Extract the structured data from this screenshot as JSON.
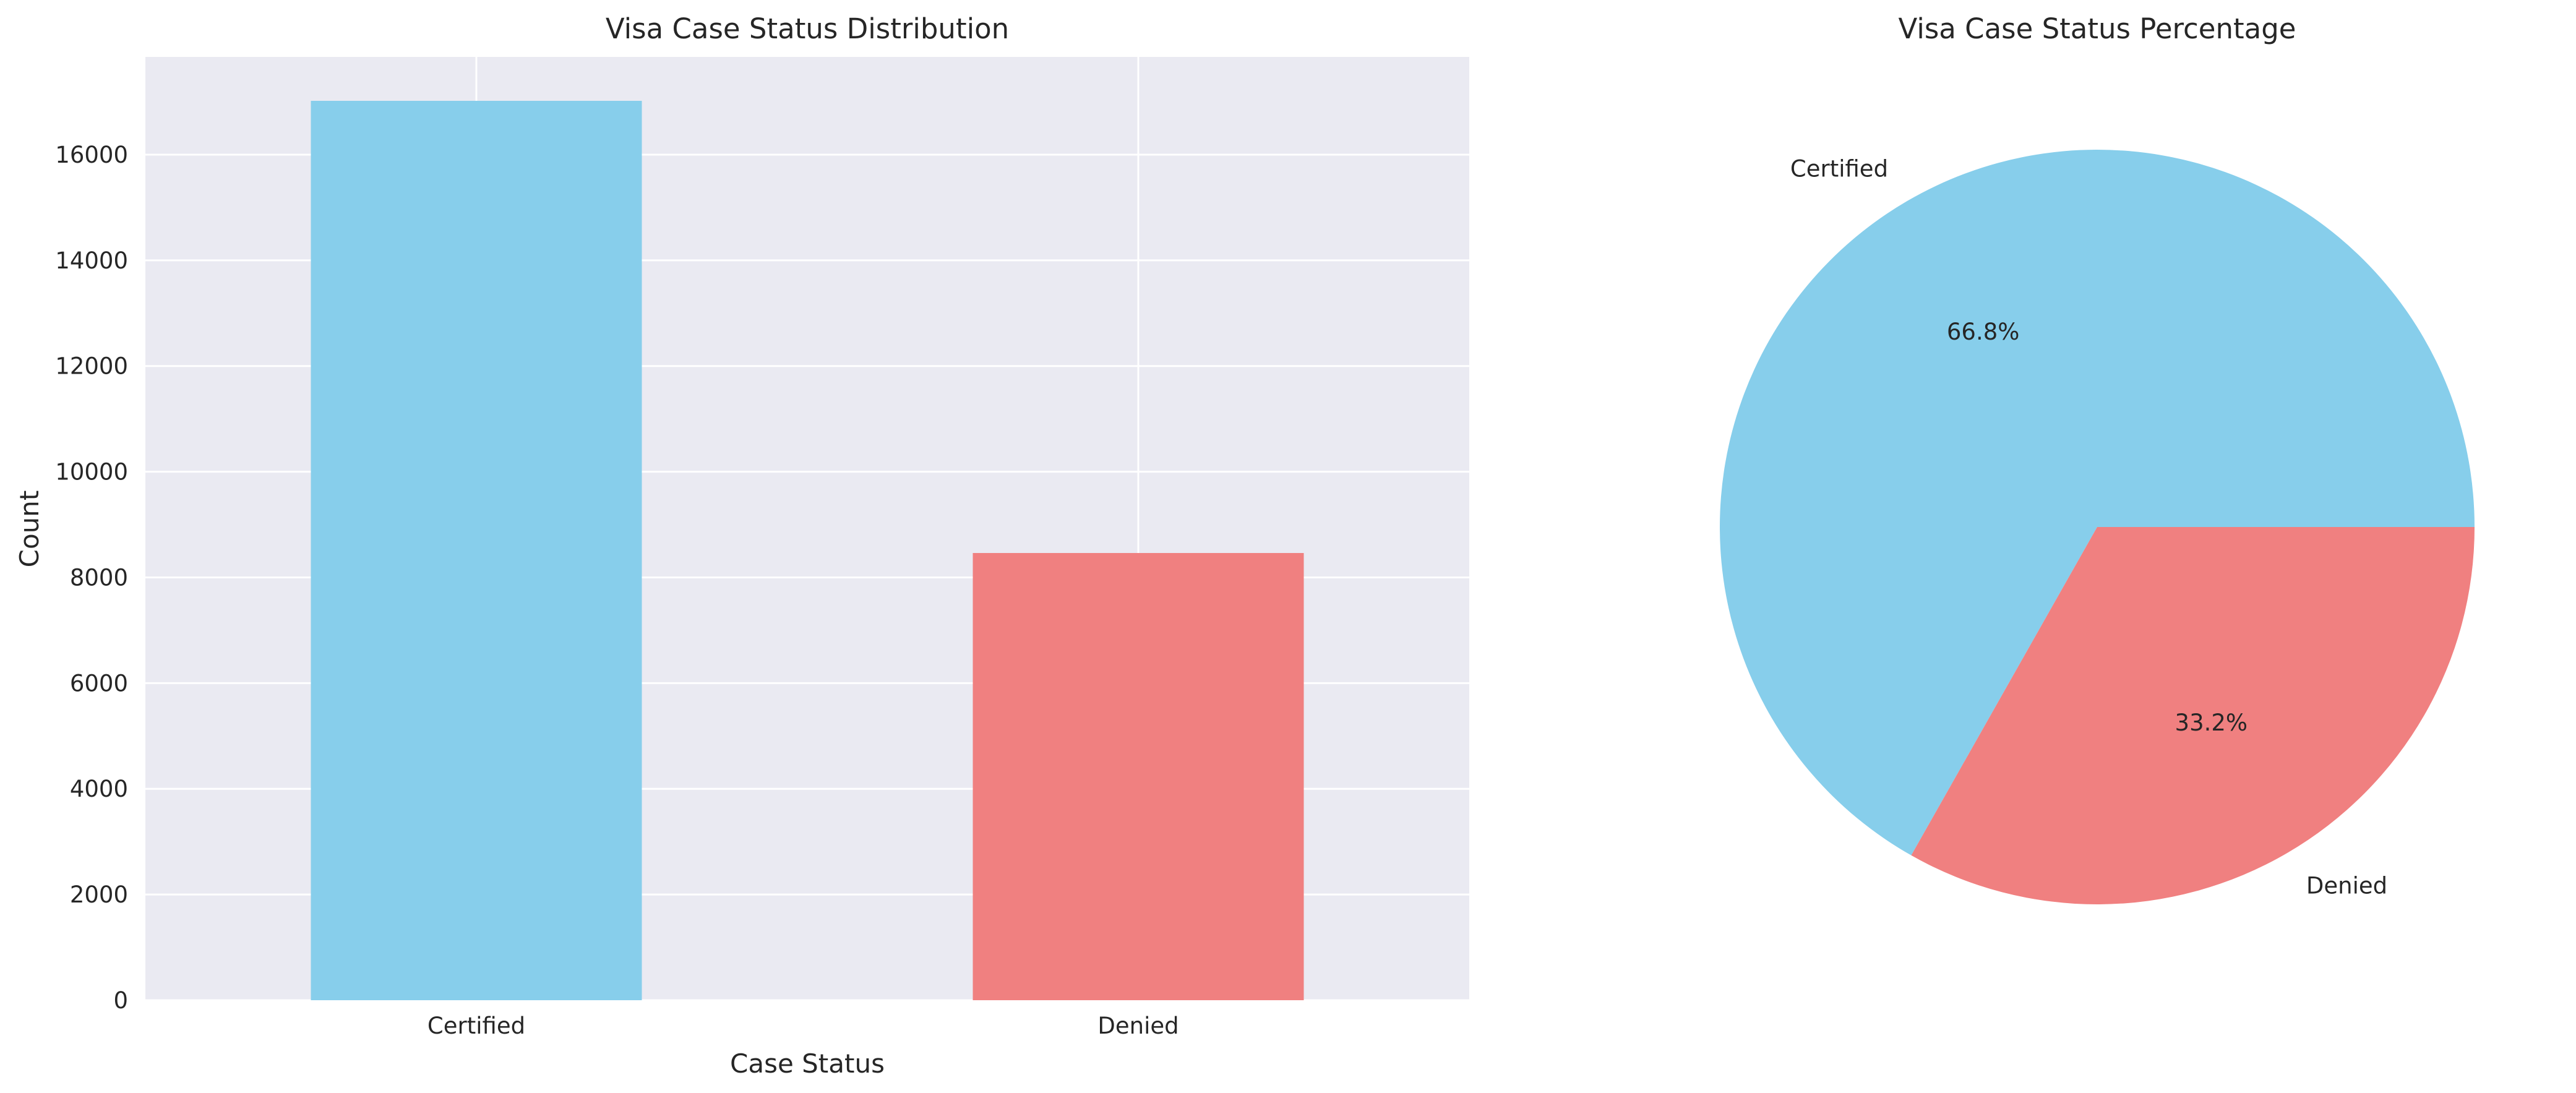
{
  "chart_data": [
    {
      "type": "bar",
      "title": "Visa Case Status Distribution",
      "xlabel": "Case Status",
      "ylabel": "Count",
      "categories": [
        "Certified",
        "Denied"
      ],
      "values": [
        17018,
        8462
      ],
      "colors": [
        "#87CEEB",
        "#F08080"
      ],
      "ylim": [
        0,
        17849
      ],
      "yticks": [
        0,
        2000,
        4000,
        6000,
        8000,
        10000,
        12000,
        14000,
        16000
      ],
      "grid": true
    },
    {
      "type": "pie",
      "title": "Visa Case Status Percentage",
      "labels": [
        "Certified",
        "Denied"
      ],
      "values": [
        66.8,
        33.2
      ],
      "autopct": [
        "66.8%",
        "33.2%"
      ],
      "colors": [
        "#87CEEB",
        "#F08080"
      ]
    }
  ]
}
